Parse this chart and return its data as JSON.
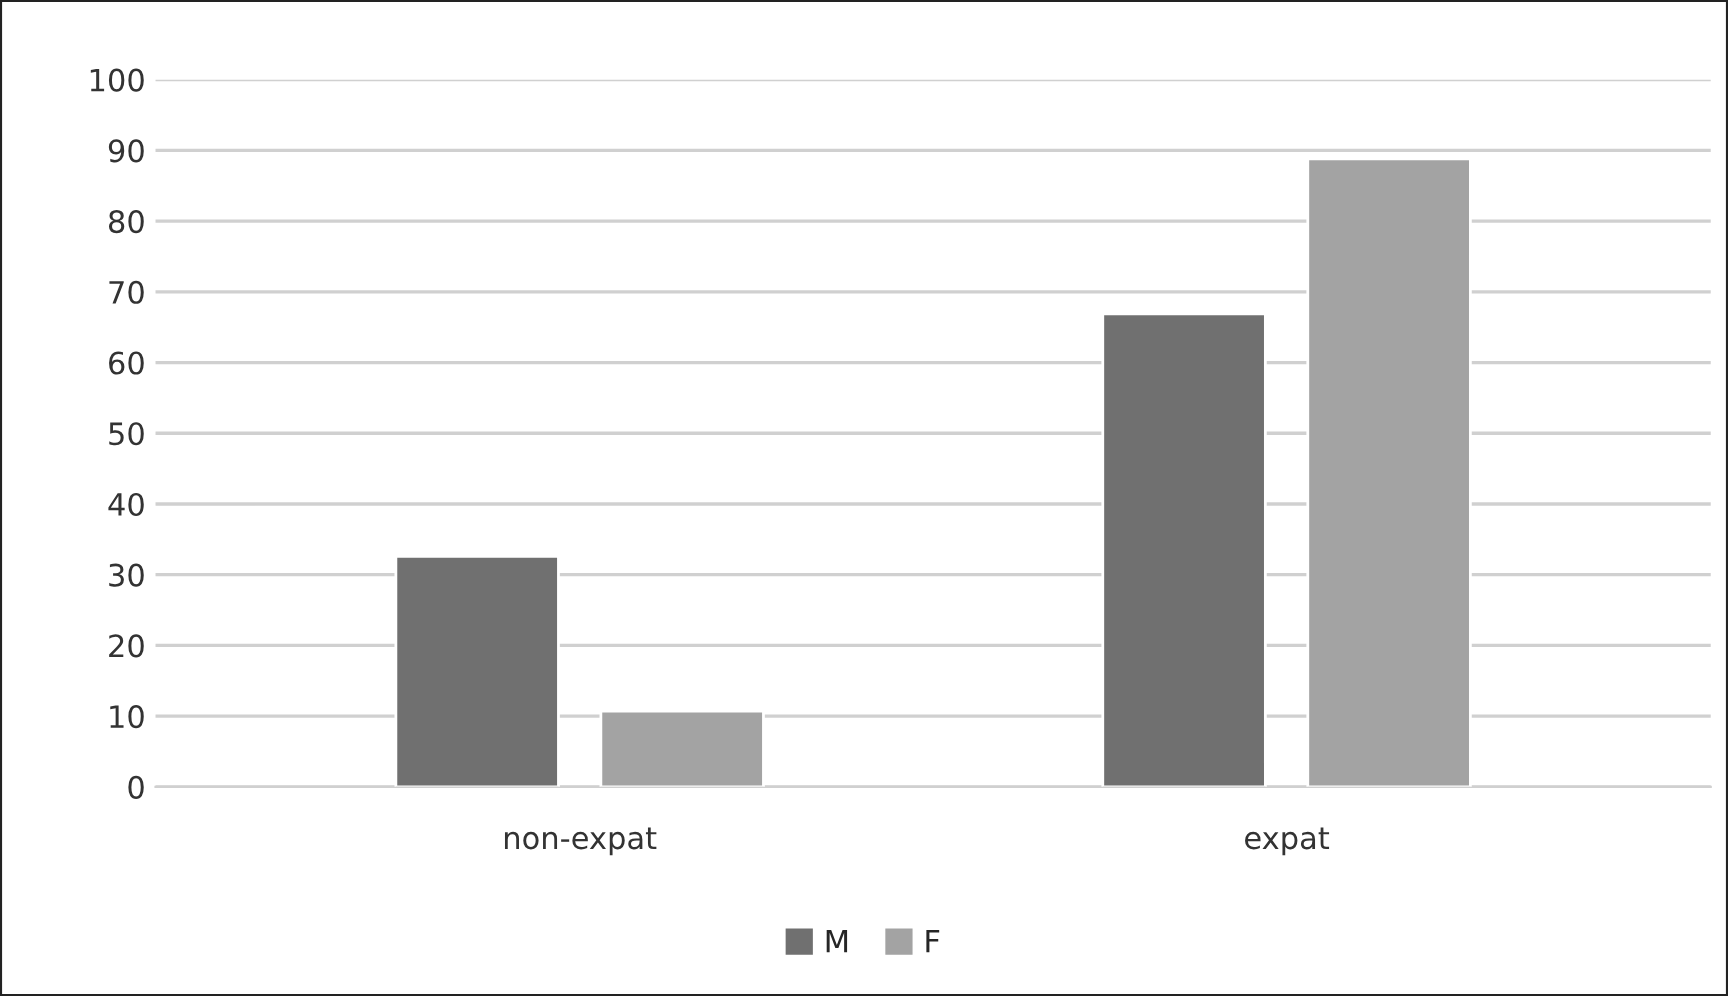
{
  "chart_data": {
    "type": "bar",
    "categories": [
      "non-expat",
      "expat"
    ],
    "series": [
      {
        "name": "M",
        "color": "#707070",
        "values": [
          32.6,
          66.9
        ]
      },
      {
        "name": "F",
        "color": "#a3a3a3",
        "values": [
          10.7,
          88.8
        ]
      }
    ],
    "ylim": [
      0,
      100
    ],
    "yticks": [
      0,
      10,
      20,
      30,
      40,
      50,
      60,
      70,
      80,
      90,
      100
    ],
    "grid": "y",
    "legend": "bottom"
  }
}
